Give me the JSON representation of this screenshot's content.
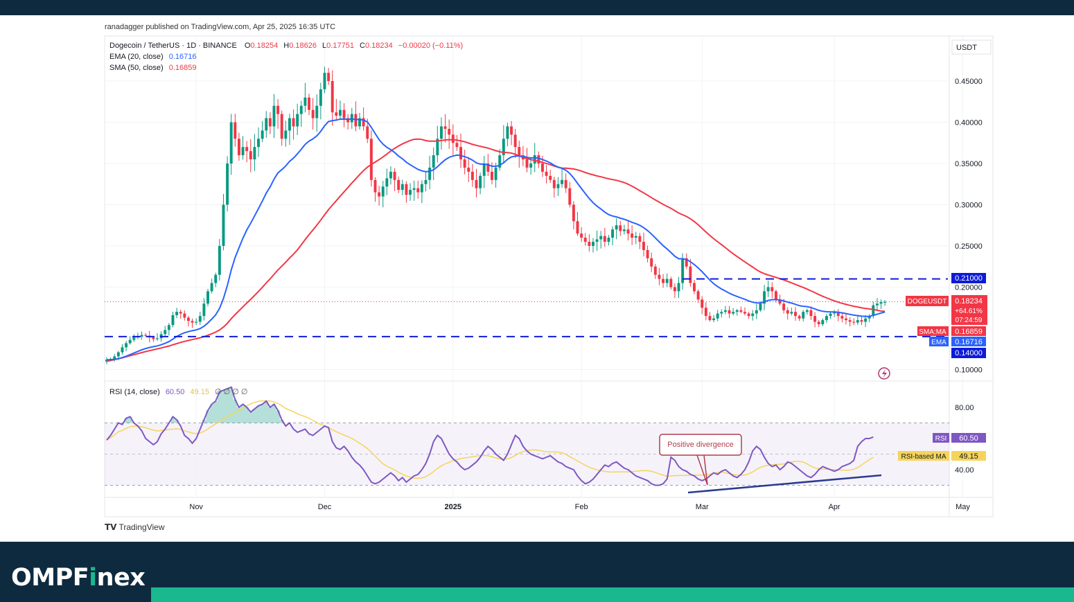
{
  "published": "ranadagger published on TradingView.com, Apr 25, 2025 16:35 UTC",
  "brand": {
    "text_a": "OMPF",
    "text_i": "i",
    "text_b": "nex",
    "accent": "#19b88f",
    "bg": "#0e2a3f"
  },
  "tv_logo": {
    "mark": "TV",
    "text": "TradingView"
  },
  "legend": {
    "symbol": "Dogecoin / TetherUS · 1D · BINANCE",
    "open_label": "O",
    "open": "0.18254",
    "high_label": "H",
    "high": "0.18626",
    "low_label": "L",
    "low": "0.17751",
    "close_label": "C",
    "close": "0.18234",
    "change": "−0.00020 (−0.11%)",
    "ema_label": "EMA (20, close)",
    "ema_value": "0.16716",
    "sma_label": "SMA (50, close)",
    "sma_value": "0.16859",
    "rsi_label": "RSI (14, close)",
    "rsi_value": "60.50",
    "rsi_ma_value": "49.15",
    "rsi_extra": "∅  ∅  ∅  ∅"
  },
  "axis": {
    "currency": "USDT",
    "price_ticks": [
      "0.45000",
      "0.40000",
      "0.35000",
      "0.30000",
      "0.25000",
      "0.20000",
      "0.10000"
    ],
    "price_tick_values": [
      0.45,
      0.4,
      0.35,
      0.3,
      0.25,
      0.2,
      0.1
    ],
    "rsi_ticks": [
      "80.00",
      "40.00"
    ],
    "rsi_tick_values": [
      80,
      40
    ],
    "time_ticks": [
      "Nov",
      "Dec",
      "2025",
      "Feb",
      "Mar",
      "Apr",
      "May"
    ],
    "time_tick_index": [
      23,
      56,
      89,
      122,
      153,
      187,
      220
    ]
  },
  "badges": {
    "resistance": "0.21000",
    "support": "0.14000",
    "symbol": "DOGEUSDT",
    "price": "0.18234",
    "pct": "+64.61%",
    "countdown": "07:24:59",
    "sma_tag": "SMA:MA",
    "sma_value": "0.16859",
    "ema_tag": "EMA",
    "ema_value": "0.16716",
    "rsi_tag": "RSI",
    "rsi_value": "60.50",
    "rsi_ma_tag": "RSI-based MA",
    "rsi_ma_value": "49.15"
  },
  "annotation": {
    "text": "Positive divergence"
  },
  "colors": {
    "up": "#089981",
    "down": "#f23645",
    "ema": "#2962ff",
    "sma": "#f23645",
    "rsi": "#7e57c2",
    "rsi_ma": "#f5d45a",
    "level": "#0d1bd8",
    "trend": "#2a3b8f"
  },
  "chart_data": {
    "type": "candlestick",
    "title": "Dogecoin / TetherUS · 1D · BINANCE",
    "ylim": [
      0.085,
      0.5
    ],
    "levels": {
      "resistance": 0.21,
      "support": 0.14
    },
    "daily_close_approx": [
      0.112,
      0.113,
      0.116,
      0.121,
      0.127,
      0.132,
      0.136,
      0.139,
      0.14,
      0.142,
      0.141,
      0.139,
      0.137,
      0.138,
      0.143,
      0.148,
      0.154,
      0.166,
      0.17,
      0.168,
      0.163,
      0.159,
      0.157,
      0.158,
      0.165,
      0.18,
      0.195,
      0.205,
      0.215,
      0.25,
      0.3,
      0.35,
      0.4,
      0.38,
      0.36,
      0.37,
      0.365,
      0.355,
      0.37,
      0.38,
      0.39,
      0.405,
      0.395,
      0.42,
      0.41,
      0.38,
      0.39,
      0.405,
      0.395,
      0.41,
      0.42,
      0.43,
      0.415,
      0.405,
      0.42,
      0.44,
      0.46,
      0.45,
      0.412,
      0.408,
      0.415,
      0.405,
      0.4,
      0.41,
      0.395,
      0.405,
      0.395,
      0.38,
      0.33,
      0.315,
      0.31,
      0.322,
      0.332,
      0.34,
      0.33,
      0.318,
      0.325,
      0.312,
      0.318,
      0.32,
      0.315,
      0.325,
      0.33,
      0.345,
      0.36,
      0.38,
      0.395,
      0.392,
      0.385,
      0.375,
      0.37,
      0.355,
      0.345,
      0.34,
      0.33,
      0.32,
      0.335,
      0.35,
      0.34,
      0.33,
      0.345,
      0.36,
      0.38,
      0.395,
      0.385,
      0.37,
      0.36,
      0.355,
      0.345,
      0.35,
      0.36,
      0.35,
      0.34,
      0.335,
      0.33,
      0.32,
      0.325,
      0.33,
      0.32,
      0.3,
      0.28,
      0.265,
      0.26,
      0.255,
      0.25,
      0.255,
      0.258,
      0.262,
      0.255,
      0.26,
      0.27,
      0.275,
      0.268,
      0.27,
      0.265,
      0.26,
      0.262,
      0.255,
      0.245,
      0.235,
      0.225,
      0.215,
      0.21,
      0.205,
      0.21,
      0.2,
      0.195,
      0.205,
      0.235,
      0.225,
      0.205,
      0.195,
      0.185,
      0.175,
      0.165,
      0.16,
      0.162,
      0.168,
      0.17,
      0.172,
      0.168,
      0.17,
      0.172,
      0.17,
      0.168,
      0.165,
      0.168,
      0.172,
      0.18,
      0.195,
      0.2,
      0.195,
      0.185,
      0.18,
      0.172,
      0.168,
      0.17,
      0.165,
      0.162,
      0.17,
      0.172,
      0.165,
      0.158,
      0.155,
      0.16,
      0.165,
      0.168,
      0.17,
      0.165,
      0.162,
      0.16,
      0.158,
      0.157,
      0.16,
      0.158,
      0.162,
      0.165,
      0.178,
      0.18,
      0.182,
      0.182
    ],
    "rsi_daily_approx": [
      59,
      62,
      66,
      70,
      69,
      73,
      74,
      70,
      68,
      65,
      60,
      58,
      56,
      58,
      63,
      66,
      70,
      74,
      72,
      68,
      62,
      60,
      57,
      60,
      66,
      72,
      78,
      82,
      84,
      90,
      91,
      92,
      93,
      85,
      80,
      82,
      80,
      77,
      79,
      81,
      82,
      84,
      80,
      82,
      78,
      72,
      68,
      70,
      66,
      64,
      65,
      66,
      63,
      62,
      64,
      66,
      68,
      67,
      58,
      54,
      53,
      55,
      52,
      48,
      45,
      43,
      40,
      36,
      32,
      31,
      32,
      34,
      36,
      38,
      36,
      33,
      35,
      32,
      34,
      36,
      37,
      40,
      44,
      50,
      58,
      62,
      60,
      55,
      50,
      47,
      45,
      42,
      40,
      41,
      43,
      45,
      48,
      52,
      55,
      53,
      50,
      48,
      46,
      50,
      56,
      62,
      60,
      55,
      52,
      50,
      49,
      48,
      47,
      48,
      49,
      47,
      45,
      44,
      42,
      41,
      40,
      36,
      33,
      31,
      32,
      34,
      37,
      40,
      43,
      42,
      44,
      45,
      43,
      41,
      40,
      38,
      36,
      35,
      34,
      33,
      31,
      30,
      30,
      31,
      34,
      48,
      46,
      42,
      40,
      39,
      37,
      36,
      34,
      33,
      34,
      36,
      38,
      37,
      39,
      40,
      38,
      36,
      35,
      37,
      40,
      45,
      52,
      55,
      53,
      48,
      44,
      42,
      43,
      40,
      42,
      45,
      44,
      42,
      40,
      38,
      36,
      35,
      37,
      40,
      42,
      41,
      40,
      39,
      40,
      42,
      43,
      44,
      46,
      55,
      58,
      60,
      60,
      61
    ],
    "ema20": {
      "label": "EMA (20, close)",
      "last": 0.16716
    },
    "sma50": {
      "label": "SMA (50, close)",
      "last": 0.16859
    },
    "last_close": 0.18234,
    "rsi": {
      "label": "RSI (14, close)",
      "last": 60.5,
      "ma_last": 49.15,
      "ylim": [
        20,
        100
      ],
      "bands": [
        70,
        50,
        30
      ]
    }
  }
}
